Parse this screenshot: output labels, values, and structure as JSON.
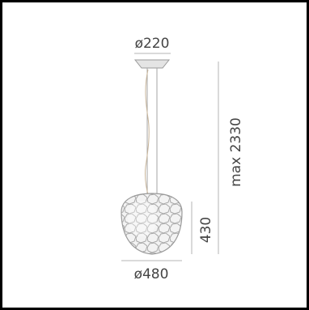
{
  "dimensions": {
    "canopy_diameter": "ø220",
    "shade_diameter": "ø480",
    "shade_height": "430",
    "max_height": "max 2330"
  },
  "colors": {
    "frame": "#000000",
    "line": "#9a9a9a",
    "dimension_line": "#b5b5b5",
    "text": "#444444",
    "shade_fill": "#d6d6d6",
    "cable": "#c8b59a"
  }
}
